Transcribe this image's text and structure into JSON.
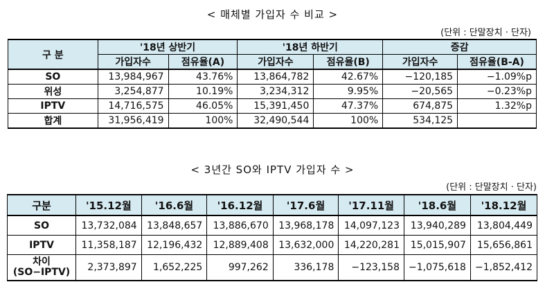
{
  "section1": {
    "title": "< 매체별 가입자 수 비교 >",
    "unit": "(단위 : 단말장치 · 단자)",
    "header": {
      "category": "구  분",
      "period1": "'18년 상반기",
      "period2": "'18년 하반기",
      "change": "증감",
      "sub": [
        "가입자수",
        "점유율(A)",
        "가입자수",
        "점유율(B)",
        "가입자수",
        "점유율(B-A)"
      ]
    },
    "rows": [
      {
        "label": "SO",
        "v": [
          "13,984,967",
          "43.76%",
          "13,864,782",
          "42.67%",
          "−120,185",
          "−1.09%p"
        ]
      },
      {
        "label": "위성",
        "v": [
          "3,254,877",
          "10.19%",
          "3,234,312",
          "9.95%",
          "−20,565",
          "−0.23%p"
        ]
      },
      {
        "label": "IPTV",
        "v": [
          "14,716,575",
          "46.05%",
          "15,391,450",
          "47.37%",
          "674,875",
          "1.32%p"
        ]
      },
      {
        "label": "합계",
        "v": [
          "31,956,419",
          "100%",
          "32,490,544",
          "100%",
          "534,125",
          ""
        ]
      }
    ]
  },
  "section2": {
    "title": "< 3년간 SO와 IPTV 가입자 수 >",
    "unit": "(단위 : 단말장치 · 단자)",
    "header": [
      "구분",
      "'15.12월",
      "'16.6월",
      "'16.12월",
      "'17.6월",
      "'17.11월",
      "'18.6월",
      "'18.12월"
    ],
    "rows": [
      {
        "label": "SO",
        "v": [
          "13,732,084",
          "13,848,657",
          "13,886,670",
          "13,968,178",
          "14,097,123",
          "13,940,289",
          "13,804,449"
        ]
      },
      {
        "label": "IPTV",
        "v": [
          "11,358,187",
          "12,196,432",
          "12,889,408",
          "13,632,000",
          "14,220,281",
          "15,015,907",
          "15,656,861"
        ]
      },
      {
        "label": "차이",
        "label_sub": "(SO−IPTV)",
        "v": [
          "2,373,897",
          "1,652,225",
          "997,262",
          "336,178",
          "−123,158",
          "−1,075,618",
          "−1,852,412"
        ]
      }
    ]
  }
}
